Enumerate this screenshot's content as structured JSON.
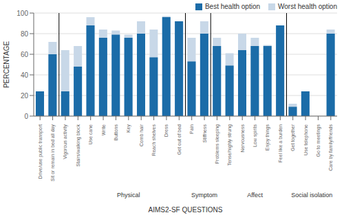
{
  "chart_data": {
    "type": "bar",
    "categories": [
      "Drive/use public transport",
      "Sit or remain in bed all day",
      "Vigorous activity",
      "Stairs/walking block",
      "Use cane",
      "Write",
      "Buttons",
      "Key",
      "Comb hair",
      "Reach shelves",
      "Dress",
      "Get out of bed",
      "Pain",
      "Stiffness",
      "Problems sleeping",
      "Tense/highly strung",
      "Nervousness",
      "Low spirits",
      "Enjoy things",
      "Feel like a burden",
      "Get together",
      "Use telephone",
      "Go to meetings",
      "Care by family/friends"
    ],
    "series": [
      {
        "name": "Best health option",
        "color": "#1B6CA8",
        "values": [
          24,
          60,
          24,
          48,
          88,
          76,
          79,
          76,
          80,
          57,
          96,
          92,
          53,
          80,
          68,
          49,
          64,
          68,
          68,
          88,
          9,
          24,
          0,
          80
        ]
      },
      {
        "name": "Worst health option",
        "color": "#C8D8E8",
        "values": [
          24,
          72,
          64,
          68,
          96,
          84,
          83,
          79,
          92,
          84,
          97,
          92,
          76,
          92,
          76,
          61,
          80,
          76,
          69,
          88,
          12,
          24,
          0,
          84
        ]
      }
    ],
    "xlabel": "AIMS2-SF QUESTIONS",
    "ylabel": "PERCENTAGE",
    "ylim": [
      0,
      100
    ],
    "yticks": [
      0,
      20,
      40,
      60,
      80,
      100
    ],
    "grid": true,
    "legend": "upper right",
    "groups": [
      {
        "label": "Physical",
        "from": "Stairs/walking block",
        "to": "Get out of bed"
      },
      {
        "label": "Symptom",
        "from": "Pain",
        "to": "Problems sleeping"
      },
      {
        "label": "Affect",
        "from": "Tense/highly strung",
        "to": "Feel like a burden"
      },
      {
        "label": "Social isolation",
        "from": "Get together",
        "to": "Care by family/friends"
      }
    ],
    "separators": [
      "Sit or remain in bed all day",
      "Get out of bed",
      "Stiffness",
      "Feel like a burden"
    ]
  }
}
